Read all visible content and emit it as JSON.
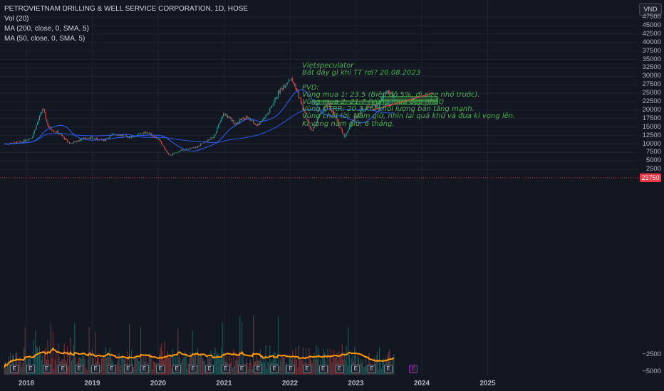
{
  "legend": {
    "title": "PETROVIETNAM DRILLING & WELL SERVICE CORPORATION, 1D, HOSE",
    "vol": "Vol (20)",
    "ma200": "MA (200, close, 0, SMA, 5)",
    "ma50": "MA (50, close, 0, SMA, 5)"
  },
  "currency": "VND",
  "last_price_label": "23750",
  "annotation": {
    "lines": [
      "Vietspeculator",
      "Bắt đáy gì khi TT rơi? 20.08.2023",
      "",
      "PVD:",
      "Vùng mua 1: 23.5 (Biên độ 5%, đi size nhỏ trước).",
      "Vùng mua 2: 21.7 (Vùng mua đẹp nhất)",
      "Vùng QTRR: 20.3 khi khối lượng bán tăng mạnh.",
      "Vùng chốt lời: Nắm giữ, nhìn lại quá khứ và đưa kì vọng lên.",
      "Kì vọng nắm giữ: 6 tháng."
    ]
  },
  "event_marker_label": "E",
  "future_event_label": "E",
  "colors": {
    "background": "#131722",
    "up": "#26a69a",
    "down": "#ef5350",
    "ma50": "#2962ff",
    "ma200": "#2962ff",
    "vol_ma": "#ff9800",
    "zone": "#4caf50",
    "trendline": "#f23645"
  },
  "chart_data": {
    "type": "candlestick",
    "title": "PETROVIETNAM DRILLING & WELL SERVICE CORPORATION, 1D, HOSE",
    "y_axis": {
      "ticks": [
        "47500",
        "45000",
        "42500",
        "40000",
        "37500",
        "35000",
        "32500",
        "30000",
        "27500",
        "25000",
        "22500",
        "20000",
        "17500",
        "15000",
        "12500",
        "10000",
        "7500",
        "5000",
        "2500",
        "−2500",
        "−5000"
      ],
      "price_range": [
        7500,
        47500
      ],
      "position": "right"
    },
    "x_axis": {
      "ticks": [
        "2018",
        "2019",
        "2020",
        "2021",
        "2022",
        "2023",
        "2024",
        "2025"
      ]
    },
    "close_trend": [
      {
        "date": "2017-09",
        "close": 10000
      },
      {
        "date": "2017-12",
        "close": 10500
      },
      {
        "date": "2018-02",
        "close": 12000
      },
      {
        "date": "2018-04",
        "close": 20500
      },
      {
        "date": "2018-05",
        "close": 15000
      },
      {
        "date": "2018-07",
        "close": 13000
      },
      {
        "date": "2018-09",
        "close": 10000
      },
      {
        "date": "2018-12",
        "close": 12000
      },
      {
        "date": "2019-03",
        "close": 11000
      },
      {
        "date": "2019-05",
        "close": 13000
      },
      {
        "date": "2019-08",
        "close": 12000
      },
      {
        "date": "2019-11",
        "close": 13500
      },
      {
        "date": "2020-01",
        "close": 11500
      },
      {
        "date": "2020-02",
        "close": 9000
      },
      {
        "date": "2020-03",
        "close": 6500
      },
      {
        "date": "2020-05",
        "close": 8000
      },
      {
        "date": "2020-08",
        "close": 9000
      },
      {
        "date": "2020-11",
        "close": 12000
      },
      {
        "date": "2021-01",
        "close": 19000
      },
      {
        "date": "2021-03",
        "close": 16000
      },
      {
        "date": "2021-05",
        "close": 18000
      },
      {
        "date": "2021-07",
        "close": 15500
      },
      {
        "date": "2021-09",
        "close": 19000
      },
      {
        "date": "2021-11",
        "close": 25500
      },
      {
        "date": "2022-01",
        "close": 29500
      },
      {
        "date": "2022-02",
        "close": 27000
      },
      {
        "date": "2022-04",
        "close": 17500
      },
      {
        "date": "2022-05",
        "close": 13500
      },
      {
        "date": "2022-06",
        "close": 17500
      },
      {
        "date": "2022-08",
        "close": 22000
      },
      {
        "date": "2022-09",
        "close": 18500
      },
      {
        "date": "2022-11",
        "close": 12000
      },
      {
        "date": "2022-12",
        "close": 16000
      },
      {
        "date": "2023-02",
        "close": 20000
      },
      {
        "date": "2023-04",
        "close": 21500
      },
      {
        "date": "2023-05",
        "close": 21000
      },
      {
        "date": "2023-06",
        "close": 24500
      },
      {
        "date": "2023-07",
        "close": 25500
      },
      {
        "date": "2023-08",
        "close": 23750
      }
    ],
    "series": [
      {
        "name": "MA (50, close, 0, SMA, 5)"
      },
      {
        "name": "MA (200, close, 0, SMA, 5)"
      },
      {
        "name": "Vol (20)"
      }
    ],
    "zones": [
      {
        "y_low": 23000,
        "y_high": 24000
      },
      {
        "y_low": 21700,
        "y_high": 22700
      }
    ],
    "trendline": {
      "from": {
        "date": "2023-04",
        "price": 20000
      },
      "to": {
        "date": "2024-03",
        "price": 25000
      }
    },
    "last_price": 23750,
    "grid": true,
    "legend_position": "top-left"
  }
}
